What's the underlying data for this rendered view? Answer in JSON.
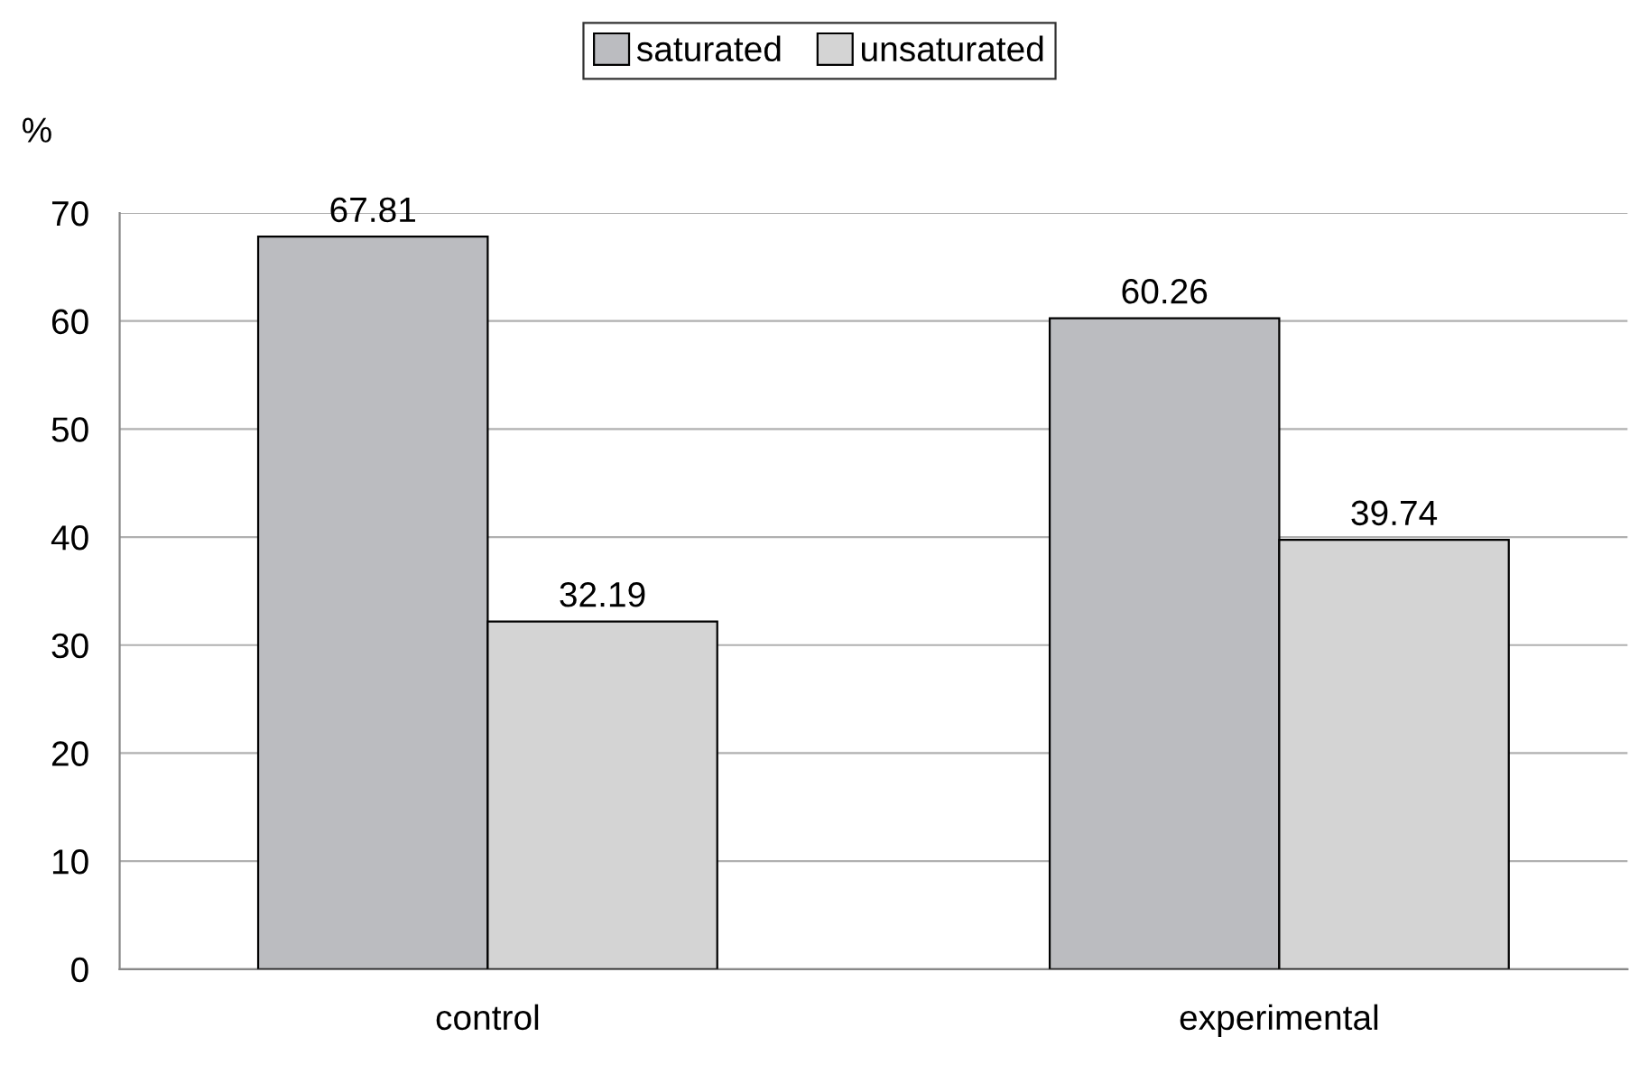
{
  "chart_data": {
    "type": "bar",
    "ylabel": "%",
    "categories": [
      "control",
      "experimental"
    ],
    "series": [
      {
        "name": "saturated",
        "color": "#bbbcc0",
        "values": [
          67.81,
          60.26
        ]
      },
      {
        "name": "unsaturated",
        "color": "#d4d4d4",
        "values": [
          32.19,
          39.74
        ]
      }
    ],
    "ylim": [
      0,
      70
    ],
    "yticks": [
      0,
      10,
      20,
      30,
      40,
      50,
      60,
      70
    ],
    "grid": "y",
    "legend": "top",
    "data_labels": true
  }
}
